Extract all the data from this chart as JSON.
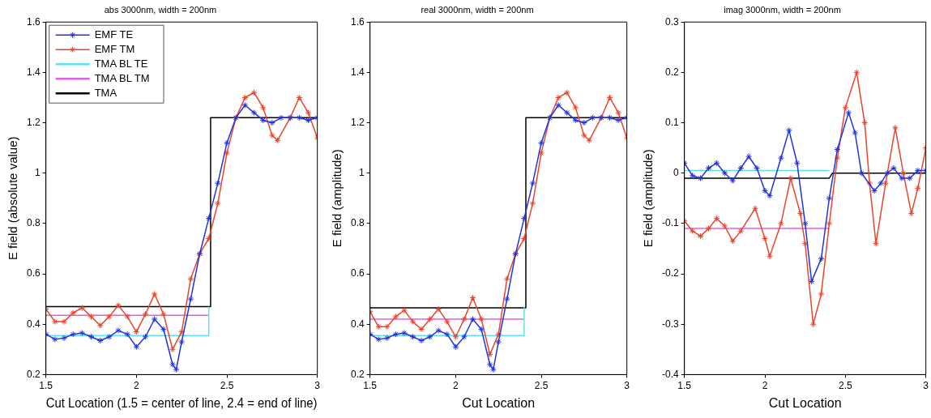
{
  "chart_data": [
    {
      "type": "line",
      "title": "abs 3000nm, width = 200nm",
      "xlabel": "Cut Location (1.5 = center of line, 2.4 = end of line)",
      "ylabel": "E field (absolute value)",
      "xlim": [
        1.5,
        3
      ],
      "xticks": [
        1.5,
        2,
        2.5,
        3
      ],
      "ylim": [
        0.2,
        1.6
      ],
      "yticks": [
        0.2,
        0.4,
        0.6,
        0.8,
        1,
        1.2,
        1.4,
        1.6
      ],
      "grid": false,
      "legend": "top left",
      "series": [
        {
          "name": "EMF TE",
          "color": "#2233dd",
          "marker": "cross",
          "x": [
            1.5,
            1.55,
            1.6,
            1.65,
            1.7,
            1.75,
            1.8,
            1.85,
            1.9,
            1.95,
            2.0,
            2.05,
            2.1,
            2.15,
            2.2,
            2.22,
            2.25,
            2.3,
            2.35,
            2.4,
            2.45,
            2.5,
            2.55,
            2.6,
            2.65,
            2.7,
            2.75,
            2.8,
            2.85,
            2.9,
            2.95,
            3.0
          ],
          "values": [
            0.36,
            0.34,
            0.345,
            0.36,
            0.365,
            0.35,
            0.335,
            0.35,
            0.375,
            0.36,
            0.31,
            0.35,
            0.42,
            0.38,
            0.24,
            0.22,
            0.33,
            0.5,
            0.68,
            0.82,
            0.96,
            1.12,
            1.22,
            1.27,
            1.24,
            1.21,
            1.2,
            1.22,
            1.22,
            1.22,
            1.21,
            1.22
          ]
        },
        {
          "name": "EMF TM",
          "color": "#e8452c",
          "marker": "cross",
          "x": [
            1.5,
            1.55,
            1.6,
            1.65,
            1.7,
            1.75,
            1.8,
            1.85,
            1.9,
            1.95,
            2.0,
            2.05,
            2.1,
            2.15,
            2.2,
            2.25,
            2.3,
            2.35,
            2.4,
            2.45,
            2.5,
            2.55,
            2.6,
            2.65,
            2.7,
            2.75,
            2.78,
            2.85,
            2.9,
            2.95,
            3.0
          ],
          "values": [
            0.46,
            0.41,
            0.41,
            0.445,
            0.465,
            0.43,
            0.395,
            0.43,
            0.475,
            0.43,
            0.37,
            0.44,
            0.52,
            0.44,
            0.3,
            0.37,
            0.58,
            0.68,
            0.74,
            0.88,
            1.08,
            1.22,
            1.3,
            1.32,
            1.26,
            1.15,
            1.13,
            1.22,
            1.3,
            1.24,
            1.14
          ]
        },
        {
          "name": "TMA BL TE",
          "color": "#5fe0f0",
          "marker": "none",
          "x": [
            1.5,
            2.4,
            2.4
          ],
          "values": [
            0.355,
            0.355,
            0.47
          ]
        },
        {
          "name": "TMA BL TM",
          "color": "#e060e0",
          "marker": "none",
          "x": [
            1.5,
            2.4
          ],
          "values": [
            0.435,
            0.435
          ]
        },
        {
          "name": "TMA",
          "color": "#000000",
          "marker": "none",
          "x": [
            1.5,
            2.41,
            2.41,
            3
          ],
          "values": [
            0.47,
            0.47,
            1.22,
            1.22
          ]
        }
      ]
    },
    {
      "type": "line",
      "title": "real 3000nm, width = 200nm",
      "xlabel": "Cut Location",
      "ylabel": "E field (amplitude)",
      "xlim": [
        1.5,
        3
      ],
      "xticks": [
        1.5,
        2,
        2.5,
        3
      ],
      "ylim": [
        0.2,
        1.6
      ],
      "yticks": [
        0.2,
        0.4,
        0.6,
        0.8,
        1,
        1.2,
        1.4,
        1.6
      ],
      "grid": false,
      "series": [
        {
          "color": "#2233dd",
          "marker": "cross",
          "x": [
            1.5,
            1.55,
            1.6,
            1.65,
            1.7,
            1.75,
            1.8,
            1.85,
            1.9,
            1.95,
            2.0,
            2.05,
            2.1,
            2.15,
            2.2,
            2.22,
            2.25,
            2.3,
            2.35,
            2.4,
            2.45,
            2.5,
            2.55,
            2.6,
            2.65,
            2.7,
            2.75,
            2.8,
            2.85,
            2.9,
            2.95,
            3.0
          ],
          "values": [
            0.36,
            0.34,
            0.345,
            0.36,
            0.365,
            0.35,
            0.335,
            0.35,
            0.375,
            0.36,
            0.31,
            0.35,
            0.42,
            0.38,
            0.24,
            0.22,
            0.33,
            0.5,
            0.68,
            0.82,
            0.96,
            1.12,
            1.22,
            1.27,
            1.24,
            1.21,
            1.2,
            1.22,
            1.22,
            1.22,
            1.21,
            1.22
          ]
        },
        {
          "color": "#e8452c",
          "marker": "cross",
          "x": [
            1.5,
            1.55,
            1.6,
            1.65,
            1.7,
            1.75,
            1.8,
            1.85,
            1.9,
            1.95,
            2.0,
            2.05,
            2.1,
            2.15,
            2.2,
            2.25,
            2.3,
            2.35,
            2.4,
            2.45,
            2.5,
            2.55,
            2.6,
            2.65,
            2.7,
            2.75,
            2.78,
            2.85,
            2.9,
            2.95,
            3.0
          ],
          "values": [
            0.45,
            0.39,
            0.39,
            0.43,
            0.455,
            0.41,
            0.38,
            0.42,
            0.46,
            0.41,
            0.35,
            0.42,
            0.505,
            0.42,
            0.28,
            0.36,
            0.58,
            0.68,
            0.74,
            0.88,
            1.08,
            1.22,
            1.3,
            1.32,
            1.26,
            1.15,
            1.13,
            1.22,
            1.3,
            1.24,
            1.14
          ]
        },
        {
          "color": "#5fe0f0",
          "marker": "none",
          "x": [
            1.5,
            2.4,
            2.4
          ],
          "values": [
            0.355,
            0.355,
            0.47
          ]
        },
        {
          "color": "#e060e0",
          "marker": "none",
          "x": [
            1.5,
            2.4
          ],
          "values": [
            0.42,
            0.42
          ]
        },
        {
          "color": "#000000",
          "marker": "none",
          "x": [
            1.5,
            2.41,
            2.41,
            3
          ],
          "values": [
            0.465,
            0.465,
            1.22,
            1.22
          ]
        }
      ]
    },
    {
      "type": "line",
      "title": "imag 3000nm, width = 200nm",
      "xlabel": "Cut Location",
      "ylabel": "E field (amplitude)",
      "xlim": [
        1.5,
        3
      ],
      "xticks": [
        1.5,
        2,
        2.5,
        3
      ],
      "ylim": [
        -0.4,
        0.3
      ],
      "yticks": [
        -0.4,
        -0.3,
        -0.2,
        -0.1,
        0,
        0.1,
        0.2,
        0.3
      ],
      "grid": false,
      "series": [
        {
          "color": "#2233dd",
          "marker": "cross",
          "x": [
            1.5,
            1.55,
            1.6,
            1.65,
            1.7,
            1.75,
            1.8,
            1.85,
            1.9,
            1.95,
            2.0,
            2.03,
            2.1,
            2.15,
            2.2,
            2.25,
            2.29,
            2.35,
            2.4,
            2.45,
            2.52,
            2.56,
            2.6,
            2.68,
            2.72,
            2.76,
            2.8,
            2.85,
            2.9,
            2.95,
            3.0
          ],
          "values": [
            0.02,
            -0.005,
            -0.01,
            0.01,
            0.02,
            0.0,
            -0.015,
            0.01,
            0.033,
            0.01,
            -0.035,
            -0.045,
            0.03,
            0.085,
            0.02,
            -0.1,
            -0.215,
            -0.17,
            -0.05,
            0.047,
            0.12,
            0.08,
            0.0,
            -0.035,
            -0.02,
            0.0,
            0.01,
            -0.01,
            -0.01,
            0.005,
            0.005
          ]
        },
        {
          "color": "#e8452c",
          "marker": "cross",
          "x": [
            1.5,
            1.55,
            1.6,
            1.65,
            1.7,
            1.75,
            1.8,
            1.85,
            1.94,
            2.0,
            2.03,
            2.1,
            2.16,
            2.22,
            2.25,
            2.3,
            2.35,
            2.4,
            2.45,
            2.5,
            2.57,
            2.62,
            2.65,
            2.69,
            2.75,
            2.81,
            2.86,
            2.91,
            2.95,
            3.0
          ],
          "values": [
            -0.095,
            -0.115,
            -0.125,
            -0.11,
            -0.09,
            -0.105,
            -0.135,
            -0.115,
            -0.07,
            -0.13,
            -0.165,
            -0.1,
            -0.01,
            -0.08,
            -0.14,
            -0.3,
            -0.24,
            -0.1,
            0.03,
            0.13,
            0.2,
            0.1,
            -0.02,
            -0.14,
            -0.02,
            0.09,
            0.0,
            -0.08,
            -0.03,
            0.05
          ]
        },
        {
          "color": "#5fe0f0",
          "marker": "none",
          "x": [
            1.5,
            2.4
          ],
          "values": [
            0.005,
            0.005
          ]
        },
        {
          "color": "#e060e0",
          "marker": "none",
          "x": [
            1.5,
            2.4
          ],
          "values": [
            -0.11,
            -0.11
          ]
        },
        {
          "color": "#000000",
          "marker": "none",
          "x": [
            1.5,
            2.4,
            2.42,
            3
          ],
          "values": [
            -0.01,
            -0.01,
            0,
            0
          ]
        }
      ]
    }
  ]
}
